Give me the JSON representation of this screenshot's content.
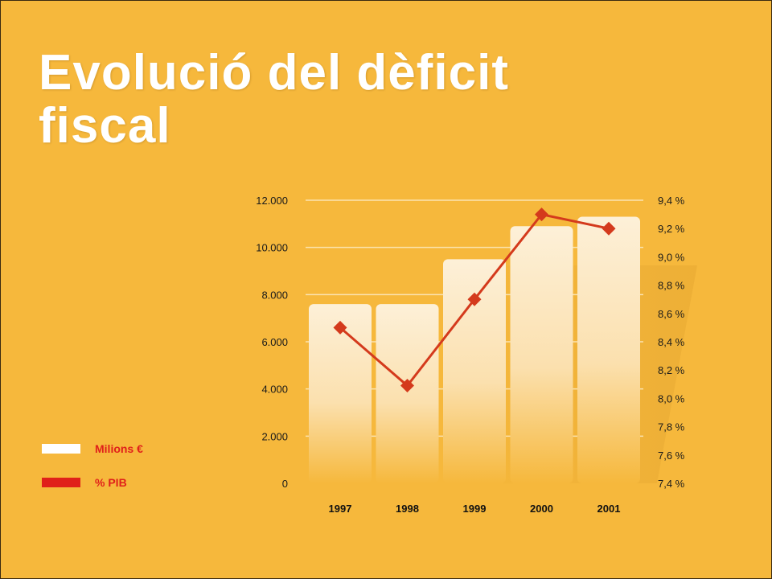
{
  "slide": {
    "title": "Evolució del dèficit fiscal"
  },
  "colors": {
    "background": "#F6B83C",
    "bar_top": "#FDF0D8",
    "bar_bottom": "#F6B83C",
    "line": "#D43A1C",
    "legend_text": "#E0201A",
    "grid": "#FBE3B0"
  },
  "chart_data": {
    "type": "bar",
    "categories": [
      "1997",
      "1998",
      "1999",
      "2000",
      "2001"
    ],
    "series": [
      {
        "name": "Milions €",
        "type": "bar",
        "axis": "left",
        "values": [
          7600,
          7600,
          9500,
          10900,
          11300
        ]
      },
      {
        "name": "% PIB",
        "type": "line",
        "axis": "right",
        "values": [
          8.5,
          8.09,
          8.7,
          9.3,
          9.2
        ]
      }
    ],
    "left_axis": {
      "ylim": [
        0,
        12000
      ],
      "ticks": [
        0,
        2000,
        4000,
        6000,
        8000,
        10000,
        12000
      ],
      "tick_labels": [
        "0",
        "2.000",
        "4.000",
        "6.000",
        "8.000",
        "10.000",
        "12.000"
      ]
    },
    "right_axis": {
      "ylim": [
        7.4,
        9.4
      ],
      "ticks": [
        7.4,
        7.6,
        7.8,
        8.0,
        8.2,
        8.4,
        8.6,
        8.8,
        9.0,
        9.2,
        9.4
      ],
      "tick_labels": [
        "7,4 %",
        "7,6 %",
        "7,8 %",
        "8,0 %",
        "8,2 %",
        "8,4 %",
        "8,6 %",
        "8,8 %",
        "9,0 %",
        "9,2 %",
        "9,4 %"
      ]
    },
    "grid": true,
    "legend": {
      "position": "bottom-left",
      "entries": [
        {
          "label": "Milions €",
          "color": "#FFFFFF"
        },
        {
          "label": "% PIB",
          "color": "#E0201A"
        }
      ]
    }
  }
}
